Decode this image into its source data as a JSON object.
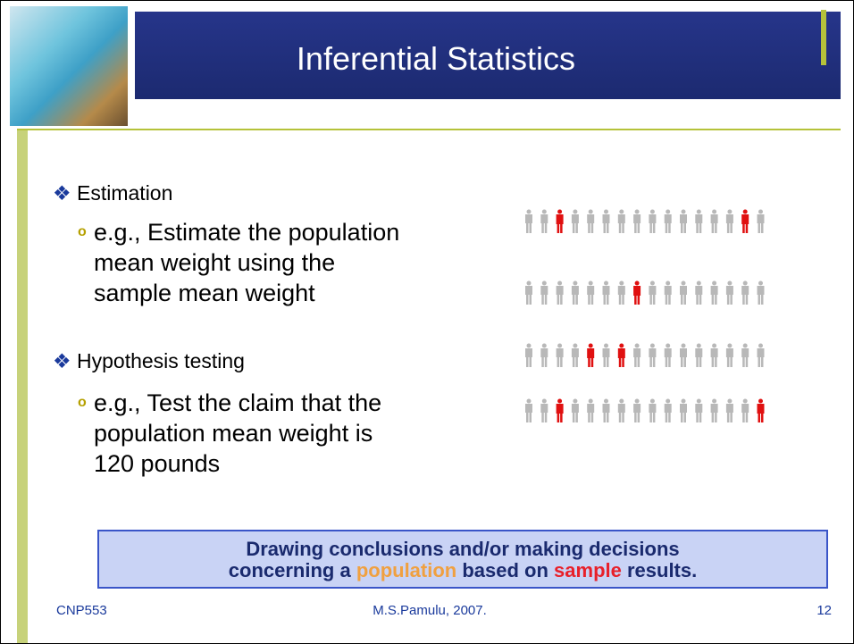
{
  "header": {
    "title": "Inferential Statistics"
  },
  "bullets": [
    {
      "marker": "❖",
      "text": "Estimation",
      "sub": [
        {
          "marker": "o",
          "lines": [
            "e.g., Estimate the population",
            "mean weight using the",
            "sample mean weight"
          ]
        }
      ]
    },
    {
      "marker": "❖",
      "text": "Hypothesis testing",
      "sub": [
        {
          "marker": "o",
          "lines": [
            "e.g., Test the claim that the",
            "population mean weight is",
            "120 pounds"
          ]
        }
      ]
    }
  ],
  "callout": {
    "line1": "Drawing conclusions and/or making decisions",
    "line2_start": "concerning a ",
    "highlight1": "population",
    "line2_middle": " based on ",
    "highlight2": "sample",
    "line2_end": " results."
  },
  "footer": {
    "left": "CNP553",
    "center": "M.S.Pamulu, 2007.",
    "right": "12"
  }
}
